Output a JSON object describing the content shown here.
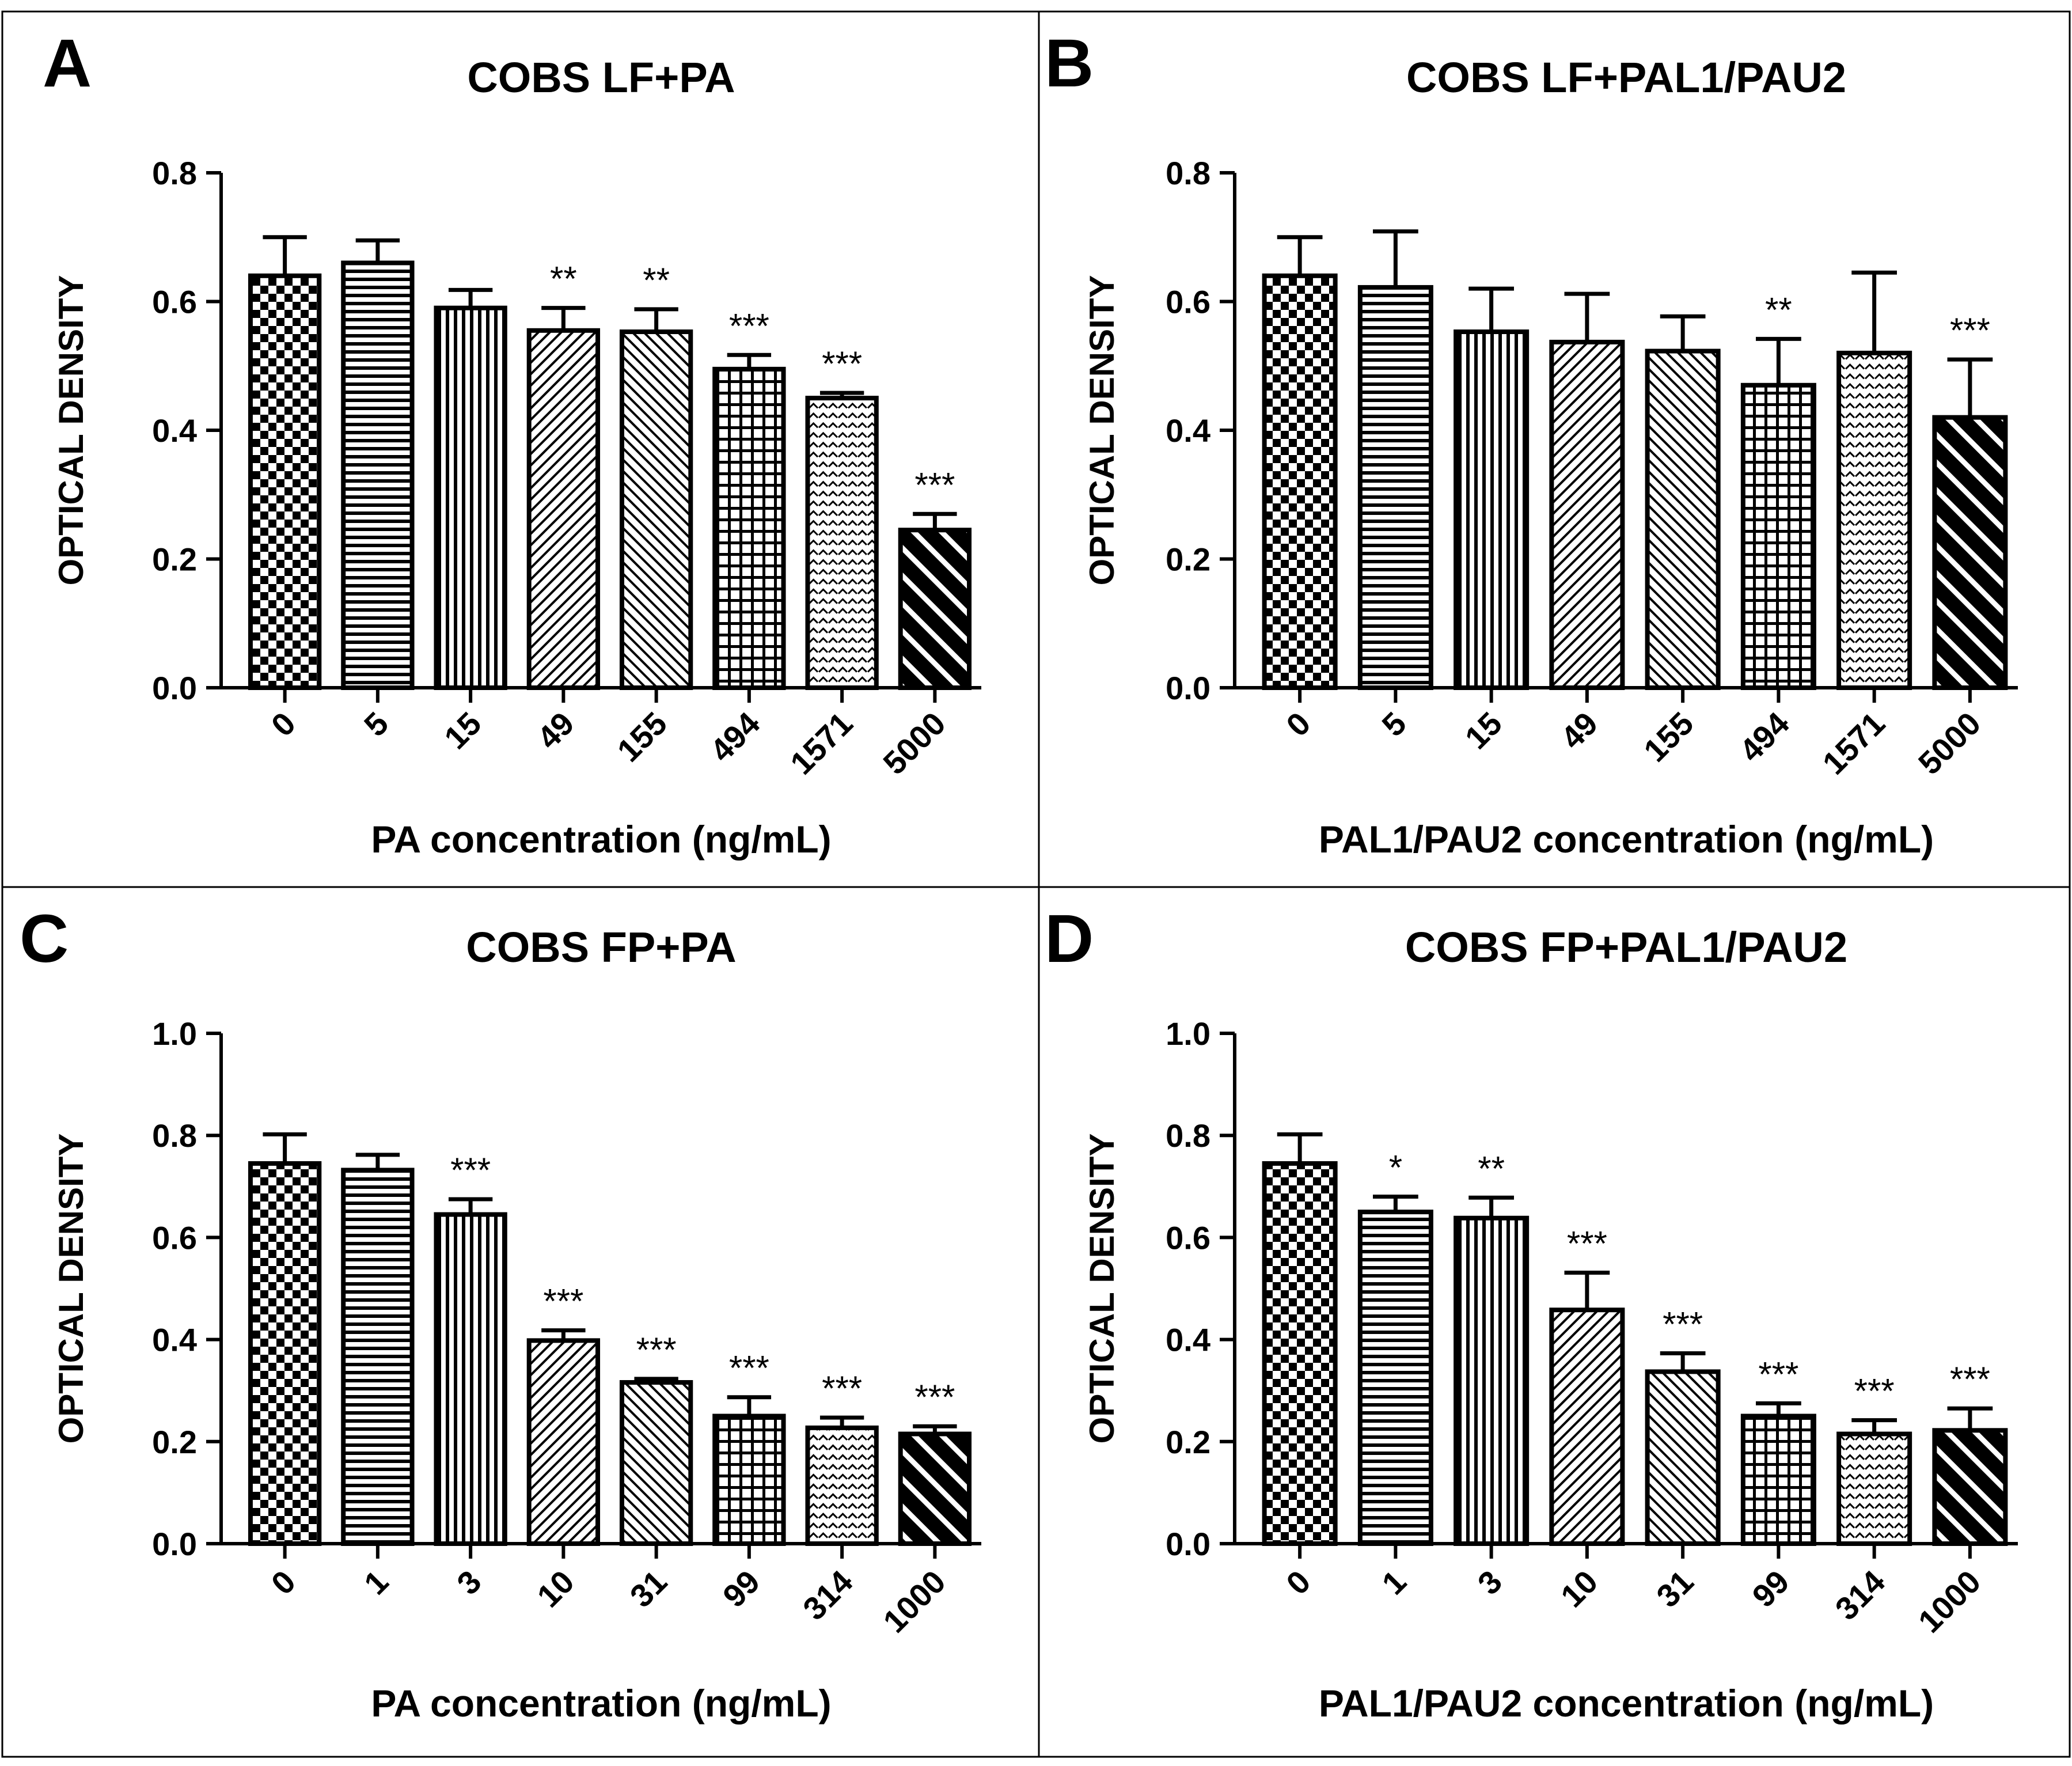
{
  "figure": {
    "description_style": "four-panel bar chart figure"
  },
  "chart_data": [
    {
      "panel": "A",
      "type": "bar",
      "title": "COBS LF+PA",
      "xlabel": "PA concentration (ng/mL)",
      "ylabel": "OPTICAL DENSITY",
      "categories": [
        "0",
        "5",
        "15",
        "49",
        "155",
        "494",
        "1571",
        "5000"
      ],
      "values": [
        0.64,
        0.66,
        0.59,
        0.555,
        0.553,
        0.495,
        0.45,
        0.245
      ],
      "errors": [
        0.06,
        0.035,
        0.028,
        0.035,
        0.035,
        0.022,
        0.008,
        0.025
      ],
      "significance": [
        "",
        "",
        "",
        "**",
        "**",
        "***",
        "***",
        "***"
      ],
      "ylim": [
        0,
        0.8
      ],
      "yticks": [
        "0.0",
        "0.2",
        "0.4",
        "0.6",
        "0.8"
      ],
      "patterns": [
        "checker",
        "hlines",
        "vlines",
        "diag-fine",
        "diag-back",
        "grid",
        "brick",
        "diag-bold"
      ]
    },
    {
      "panel": "B",
      "type": "bar",
      "title": "COBS LF+PAL1/PAU2",
      "xlabel": "PAL1/PAU2 concentration (ng/mL)",
      "ylabel": "OPTICAL DENSITY",
      "categories": [
        "0",
        "5",
        "15",
        "49",
        "155",
        "494",
        "1571",
        "5000"
      ],
      "values": [
        0.64,
        0.622,
        0.553,
        0.537,
        0.523,
        0.47,
        0.52,
        0.42
      ],
      "errors": [
        0.06,
        0.087,
        0.067,
        0.075,
        0.054,
        0.072,
        0.125,
        0.09
      ],
      "significance": [
        "",
        "",
        "",
        "",
        "",
        "**",
        "",
        "***"
      ],
      "ylim": [
        0,
        0.8
      ],
      "yticks": [
        "0.0",
        "0.2",
        "0.4",
        "0.6",
        "0.8"
      ],
      "patterns": [
        "checker",
        "hlines",
        "vlines",
        "diag-fine",
        "diag-back",
        "grid",
        "brick",
        "diag-bold"
      ]
    },
    {
      "panel": "C",
      "type": "bar",
      "title": "COBS FP+PA",
      "xlabel": "PA concentration (ng/mL)",
      "ylabel": "OPTICAL DENSITY",
      "categories": [
        "0",
        "1",
        "3",
        "10",
        "31",
        "99",
        "314",
        "1000"
      ],
      "values": [
        0.745,
        0.732,
        0.645,
        0.398,
        0.316,
        0.25,
        0.227,
        0.215
      ],
      "errors": [
        0.057,
        0.03,
        0.03,
        0.02,
        0.007,
        0.037,
        0.02,
        0.015
      ],
      "significance": [
        "",
        "",
        "***",
        "***",
        "***",
        "***",
        "***",
        "***"
      ],
      "ylim": [
        0,
        1.0
      ],
      "yticks": [
        "0.0",
        "0.2",
        "0.4",
        "0.6",
        "0.8",
        "1.0"
      ],
      "patterns": [
        "checker",
        "hlines",
        "vlines",
        "diag-fine",
        "diag-back",
        "grid",
        "brick",
        "diag-bold"
      ]
    },
    {
      "panel": "D",
      "type": "bar",
      "title": "COBS FP+PAL1/PAU2",
      "xlabel": "PAL1/PAU2 concentration (ng/mL)",
      "ylabel": "OPTICAL DENSITY",
      "categories": [
        "0",
        "1",
        "3",
        "10",
        "31",
        "99",
        "314",
        "1000"
      ],
      "values": [
        0.745,
        0.65,
        0.638,
        0.458,
        0.337,
        0.25,
        0.215,
        0.222
      ],
      "errors": [
        0.057,
        0.03,
        0.04,
        0.073,
        0.036,
        0.025,
        0.027,
        0.043
      ],
      "significance": [
        "",
        "*",
        "**",
        "***",
        "***",
        "***",
        "***",
        "***"
      ],
      "ylim": [
        0,
        1.0
      ],
      "yticks": [
        "0.0",
        "0.2",
        "0.4",
        "0.6",
        "0.8",
        "1.0"
      ],
      "patterns": [
        "checker",
        "hlines",
        "vlines",
        "diag-fine",
        "diag-back",
        "grid",
        "brick",
        "diag-bold"
      ]
    }
  ]
}
